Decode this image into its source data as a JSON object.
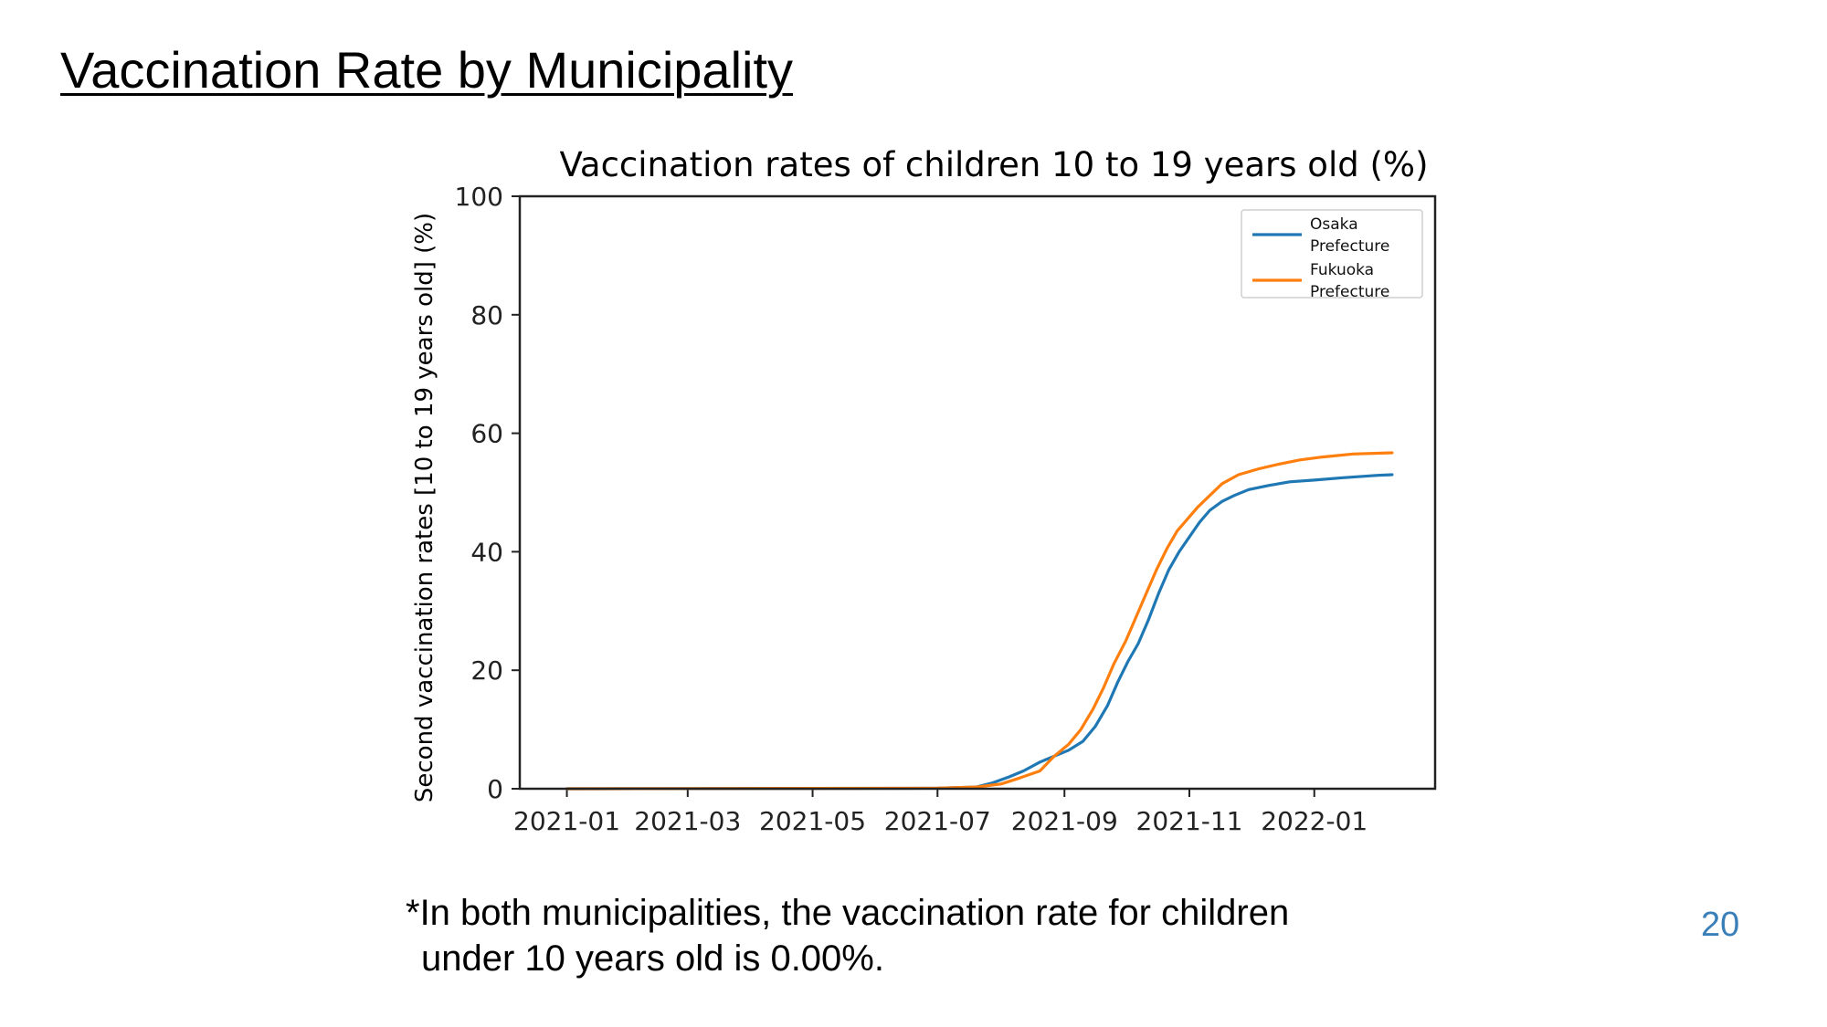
{
  "slide": {
    "title": "Vaccination Rate by Municipality",
    "footnote_line1": "*In both municipalities, the vaccination rate for children",
    "footnote_line2": "under 10 years old is 0.00%.",
    "page_number": "20",
    "page_number_color": "#3A7FB8"
  },
  "chart_data": {
    "type": "line",
    "title": "Vaccination rates of children 10 to 19 years old (%)",
    "xlabel": "",
    "ylabel": "Second vaccination rates [10 to 19 years old] (%)",
    "x_type": "date",
    "xlim": [
      "2020-12-09",
      "2022-03-01"
    ],
    "ylim": [
      0,
      100
    ],
    "xticks": [
      "2021-01",
      "2021-03",
      "2021-05",
      "2021-07",
      "2021-09",
      "2021-11",
      "2022-01"
    ],
    "yticks": [
      0,
      20,
      40,
      60,
      80,
      100
    ],
    "grid": false,
    "legend_position": "top-right",
    "series": [
      {
        "name": "Osaka\nPrefecture",
        "color": "#1F77B4",
        "x": [
          "2021-01-01",
          "2021-07-01",
          "2021-07-20",
          "2021-07-28",
          "2021-08-05",
          "2021-08-12",
          "2021-08-20",
          "2021-08-27",
          "2021-09-03",
          "2021-09-10",
          "2021-09-16",
          "2021-09-22",
          "2021-09-27",
          "2021-10-02",
          "2021-10-07",
          "2021-10-12",
          "2021-10-17",
          "2021-10-22",
          "2021-10-27",
          "2021-11-01",
          "2021-11-06",
          "2021-11-11",
          "2021-11-17",
          "2021-11-23",
          "2021-11-30",
          "2021-12-10",
          "2021-12-20",
          "2022-01-01",
          "2022-01-15",
          "2022-02-01",
          "2022-02-08"
        ],
        "y": [
          0.0,
          0.1,
          0.3,
          1.0,
          2.0,
          3.0,
          4.5,
          5.5,
          6.5,
          8.0,
          10.5,
          14.0,
          18.0,
          21.5,
          24.5,
          28.5,
          33.0,
          37.0,
          40.0,
          42.5,
          45.0,
          47.0,
          48.5,
          49.5,
          50.5,
          51.2,
          51.8,
          52.1,
          52.5,
          52.9,
          53.0
        ]
      },
      {
        "name": "Fukuoka\nPrefecture",
        "color": "#FF7F0E",
        "x": [
          "2021-01-01",
          "2021-07-01",
          "2021-07-20",
          "2021-08-01",
          "2021-08-10",
          "2021-08-20",
          "2021-08-27",
          "2021-09-03",
          "2021-09-09",
          "2021-09-15",
          "2021-09-20",
          "2021-09-25",
          "2021-10-01",
          "2021-10-06",
          "2021-10-11",
          "2021-10-16",
          "2021-10-21",
          "2021-10-26",
          "2021-10-31",
          "2021-11-05",
          "2021-11-11",
          "2021-11-17",
          "2021-11-25",
          "2021-12-05",
          "2021-12-15",
          "2021-12-25",
          "2022-01-05",
          "2022-01-20",
          "2022-02-08"
        ],
        "y": [
          0.0,
          0.1,
          0.3,
          0.8,
          1.8,
          3.0,
          5.5,
          7.5,
          10.0,
          13.5,
          17.0,
          21.0,
          25.0,
          29.0,
          33.0,
          37.0,
          40.5,
          43.5,
          45.5,
          47.5,
          49.5,
          51.5,
          53.0,
          54.0,
          54.8,
          55.5,
          56.0,
          56.5,
          56.7
        ]
      }
    ]
  }
}
